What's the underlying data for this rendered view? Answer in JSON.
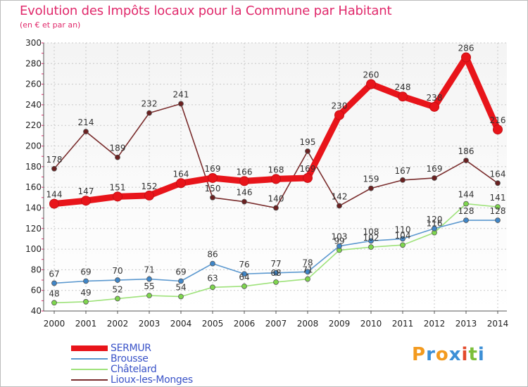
{
  "title": "Evolution des Impôts locaux pour la Commune par Habitant",
  "subtitle": "(en € et par an)",
  "logo": {
    "letters": [
      "P",
      "r",
      "o",
      "x",
      "i",
      "t",
      "i"
    ],
    "colors": [
      "#f39a1e",
      "#3c8fd6",
      "#f39a1e",
      "#3c8fd6",
      "#e34a2c",
      "#7bbf3a",
      "#3c8fd6"
    ]
  },
  "chart_data": {
    "type": "line",
    "title": "Evolution des Impôts locaux pour la Commune par Habitant",
    "subtitle": "(en € et par an)",
    "xlabel": "",
    "ylabel": "",
    "categories": [
      "2000",
      "2001",
      "2002",
      "2003",
      "2004",
      "2005",
      "2006",
      "2007",
      "2008",
      "2009",
      "2010",
      "2011",
      "2012",
      "2013",
      "2014"
    ],
    "ylim": [
      40,
      300
    ],
    "yticks": [
      40,
      60,
      80,
      100,
      120,
      140,
      160,
      180,
      200,
      220,
      240,
      260,
      280,
      300
    ],
    "grid": true,
    "series": [
      {
        "name": "Lioux-les-Monges",
        "color": "#7a2d2d",
        "marker": "#6a2020",
        "values": [
          178,
          214,
          189,
          232,
          241,
          150,
          146,
          140,
          195,
          142,
          159,
          167,
          169,
          186,
          164
        ]
      },
      {
        "name": "Châtelard",
        "color": "#9ee27a",
        "marker": "#7ed64d",
        "values": [
          48,
          49,
          52,
          55,
          54,
          63,
          64,
          68,
          71,
          99,
          102,
          104,
          116,
          144,
          141
        ]
      },
      {
        "name": "Brousse",
        "color": "#5b98cf",
        "marker": "#3f86c8",
        "values": [
          67,
          69,
          70,
          71,
          69,
          86,
          76,
          77,
          78,
          103,
          108,
          110,
          120,
          128,
          128
        ]
      },
      {
        "name": "SERMUR",
        "color": "#e8141a",
        "marker": "#e8141a",
        "values": [
          144,
          147,
          151,
          152,
          164,
          169,
          166,
          168,
          169,
          230,
          260,
          248,
          238,
          286,
          216
        ]
      }
    ],
    "point_labels": {
      "Lioux-les-Monges": [
        "178",
        "214",
        "189",
        "232",
        "241",
        "150",
        "146",
        "140",
        "195",
        "142",
        "159",
        "167",
        "169",
        "186",
        "164"
      ],
      "Châtelard": [
        "48",
        "49",
        "52",
        "55",
        "54",
        "63",
        "64",
        "68",
        "71",
        "99",
        "102",
        "104",
        "116",
        "144",
        "141"
      ],
      "Brousse": [
        "67",
        "69",
        "70",
        "71",
        "69",
        "86",
        "76",
        "77",
        "78",
        "103",
        "108",
        "110",
        "120",
        "128",
        "128"
      ],
      "SERMUR": [
        "144",
        "147",
        "151",
        "152",
        "164",
        "169",
        "166",
        "168",
        "169",
        "230",
        "260",
        "248",
        "238",
        "286",
        "216"
      ]
    },
    "legend": [
      "SERMUR",
      "Brousse",
      "Châtelard",
      "Lioux-les-Monges"
    ]
  }
}
